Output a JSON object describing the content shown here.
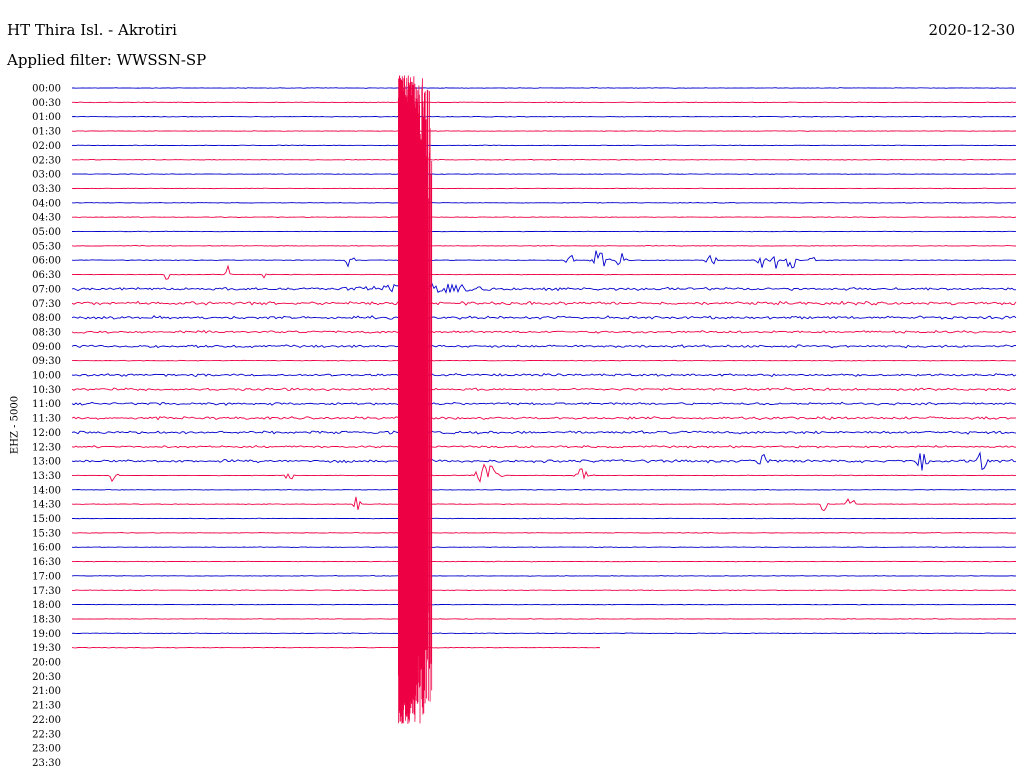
{
  "header": {
    "station": "HT Thira Isl. - Akrotiri",
    "filter": "Applied filter: WWSSN-SP",
    "date": "2020-12-30"
  },
  "chart_data": {
    "type": "line",
    "title": "HT Thira Isl. - Akrotiri",
    "ylabel": "EHZ - 5000",
    "ytick_labels": [
      "00:00",
      "00:30",
      "01:00",
      "01:30",
      "02:00",
      "02:30",
      "03:00",
      "03:30",
      "04:00",
      "04:30",
      "05:00",
      "05:30",
      "06:00",
      "06:30",
      "07:00",
      "07:30",
      "08:00",
      "08:30",
      "09:00",
      "09:30",
      "10:00",
      "10:30",
      "11:00",
      "11:30",
      "12:00",
      "12:30",
      "13:00",
      "13:30",
      "14:00",
      "14:30",
      "15:00",
      "15:30",
      "16:00",
      "16:30",
      "17:00",
      "17:30",
      "18:00",
      "18:30",
      "19:00",
      "19:30",
      "20:00",
      "20:30",
      "21:00",
      "21:30",
      "22:00",
      "22:30",
      "23:00",
      "23:30"
    ],
    "trace_colors": [
      "#0000cc",
      "#ee0044"
    ],
    "traces_recorded": 40,
    "last_trace_end_fraction": 0.56,
    "event_minute_in_trace": 10.5,
    "grid": false,
    "legend": "none"
  }
}
